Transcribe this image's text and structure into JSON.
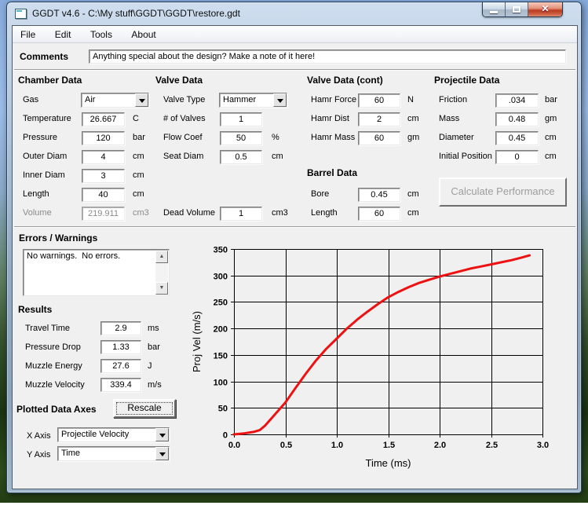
{
  "window": {
    "title": "GGDT v4.6 - C:\\My stuff\\GGDT\\GGDT\\restore.gdt",
    "menu": [
      "File",
      "Edit",
      "Tools",
      "About"
    ]
  },
  "comments": {
    "label": "Comments",
    "value": "Anything special about the design?  Make a note of it here!"
  },
  "chamber": {
    "title": "Chamber Data",
    "fields": [
      {
        "label": "Gas",
        "value": "Air",
        "unit": ""
      },
      {
        "label": "Temperature",
        "value": "26.667",
        "unit": "C"
      },
      {
        "label": "Pressure",
        "value": "120",
        "unit": "bar"
      },
      {
        "label": "Outer Diam",
        "value": "4",
        "unit": "cm"
      },
      {
        "label": "Inner Diam",
        "value": "3",
        "unit": "cm"
      },
      {
        "label": "Length",
        "value": "40",
        "unit": "cm"
      },
      {
        "label": "Volume",
        "value": "219.911",
        "unit": "cm3"
      }
    ]
  },
  "valve": {
    "title": "Valve Data",
    "fields": [
      {
        "label": "Valve Type",
        "value": "Hammer",
        "unit": ""
      },
      {
        "label": "# of Valves",
        "value": "1",
        "unit": ""
      },
      {
        "label": "Flow Coef",
        "value": "50",
        "unit": "%"
      },
      {
        "label": "Seat Diam",
        "value": "0.5",
        "unit": "cm"
      },
      {
        "label": "Dead Volume",
        "value": "1",
        "unit": "cm3"
      }
    ]
  },
  "valve_cont": {
    "title": "Valve Data (cont)",
    "fields": [
      {
        "label": "Hamr Force",
        "value": "60",
        "unit": "N"
      },
      {
        "label": "Hamr Dist",
        "value": "2",
        "unit": "cm"
      },
      {
        "label": "Hamr Mass",
        "value": "60",
        "unit": "gm"
      }
    ]
  },
  "barrel": {
    "title": "Barrel Data",
    "fields": [
      {
        "label": "Bore",
        "value": "0.45",
        "unit": "cm"
      },
      {
        "label": "Length",
        "value": "60",
        "unit": "cm"
      }
    ]
  },
  "projectile": {
    "title": "Projectile Data",
    "fields": [
      {
        "label": "Friction",
        "value": ".034",
        "unit": "bar"
      },
      {
        "label": "Mass",
        "value": "0.48",
        "unit": "gm"
      },
      {
        "label": "Diameter",
        "value": "0.45",
        "unit": "cm"
      },
      {
        "label": "Initial Position",
        "value": "0",
        "unit": "cm"
      }
    ],
    "calc_button": "Calculate Performance"
  },
  "errors": {
    "title": "Errors / Warnings",
    "text": "No warnings.  No errors."
  },
  "results": {
    "title": "Results",
    "fields": [
      {
        "label": "Travel Time",
        "value": "2.9",
        "unit": "ms"
      },
      {
        "label": "Pressure Drop",
        "value": "1.33",
        "unit": "bar"
      },
      {
        "label": "Muzzle Energy",
        "value": "27.6",
        "unit": "J"
      },
      {
        "label": "Muzzle Velocity",
        "value": "339.4",
        "unit": "m/s"
      }
    ]
  },
  "plotted": {
    "title": "Plotted Data Axes",
    "rescale_button": "Rescale",
    "x_axis_label": "X Axis",
    "x_axis_value": "Projectile Velocity",
    "y_axis_label": "Y Axis",
    "y_axis_value": "Time"
  },
  "chart_data": {
    "type": "line",
    "title": "",
    "xlabel": "Time (ms)",
    "ylabel": "Proj Vel (m/s)",
    "xlim": [
      0,
      3
    ],
    "ylim": [
      0,
      350
    ],
    "grid": true,
    "line_color": "#ee1111",
    "xticks": [
      0,
      0.5,
      1,
      1.5,
      2,
      2.5,
      3
    ],
    "xtick_labels": [
      "0.0",
      "0.5",
      "1.0",
      "1.5",
      "2.0",
      "2.5",
      "3.0"
    ],
    "yticks": [
      0,
      50,
      100,
      150,
      200,
      250,
      300,
      350
    ],
    "ytick_labels": [
      "0",
      "50",
      "100",
      "150",
      "200",
      "250",
      "300",
      "350"
    ],
    "x": [
      0,
      0.1,
      0.2,
      0.25,
      0.3,
      0.4,
      0.5,
      0.6,
      0.7,
      0.8,
      0.9,
      1.0,
      1.1,
      1.2,
      1.3,
      1.4,
      1.5,
      1.6,
      1.7,
      1.8,
      1.9,
      2.0,
      2.1,
      2.2,
      2.3,
      2.4,
      2.5,
      2.6,
      2.7,
      2.8,
      2.875
    ],
    "series": [
      {
        "name": "Projectile Velocity",
        "values": [
          0,
          2,
          5,
          8,
          16,
          38,
          60,
          88,
          115,
          140,
          162,
          181,
          200,
          217,
          232,
          246,
          259,
          269,
          278,
          286,
          292,
          298,
          303,
          308,
          313,
          317,
          321,
          325,
          329,
          334,
          338
        ]
      }
    ]
  }
}
